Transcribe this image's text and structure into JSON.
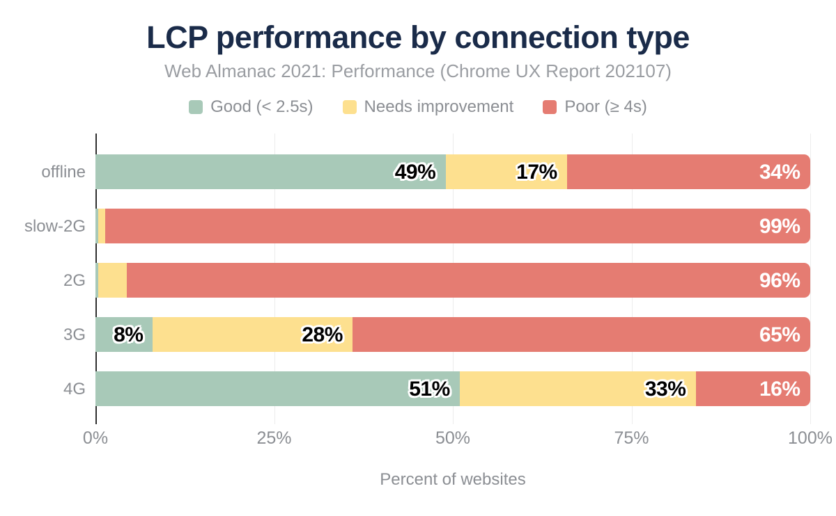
{
  "chart_data": {
    "type": "bar",
    "orientation": "horizontal",
    "stacked": true,
    "title": "LCP performance by connection type",
    "subtitle": "Web Almanac 2021: Performance (Chrome UX Report 202107)",
    "xlabel": "Percent of websites",
    "categories": [
      "offline",
      "slow-2G",
      "2G",
      "3G",
      "4G"
    ],
    "series": [
      {
        "name": "Good (< 2.5s)",
        "color": "#a8c9b8",
        "label_style": "dark-outlined",
        "values": [
          49,
          0,
          0,
          8,
          51
        ]
      },
      {
        "name": "Needs improvement",
        "color": "#fde08f",
        "label_style": "dark-outlined",
        "values": [
          17,
          1,
          4,
          28,
          33
        ]
      },
      {
        "name": "Poor (≥ 4s)",
        "color": "#e57c72",
        "label_style": "white",
        "values": [
          34,
          99,
          96,
          65,
          16
        ]
      }
    ],
    "value_suffix": "%",
    "x_ticks": [
      {
        "label": "0%",
        "value": 0
      },
      {
        "label": "25%",
        "value": 25
      },
      {
        "label": "50%",
        "value": 50
      },
      {
        "label": "75%",
        "value": 75
      },
      {
        "label": "100%",
        "value": 100
      }
    ],
    "xlim": [
      0,
      100
    ],
    "gridlines": [
      25,
      50,
      75,
      100
    ],
    "legend_position": "top",
    "grid": "vertical",
    "colors": {
      "title": "#1a2b49",
      "text": "#8b8e93",
      "axis_line": "#2e2e2e",
      "gridline": "#ececec",
      "background": "#ffffff"
    }
  }
}
